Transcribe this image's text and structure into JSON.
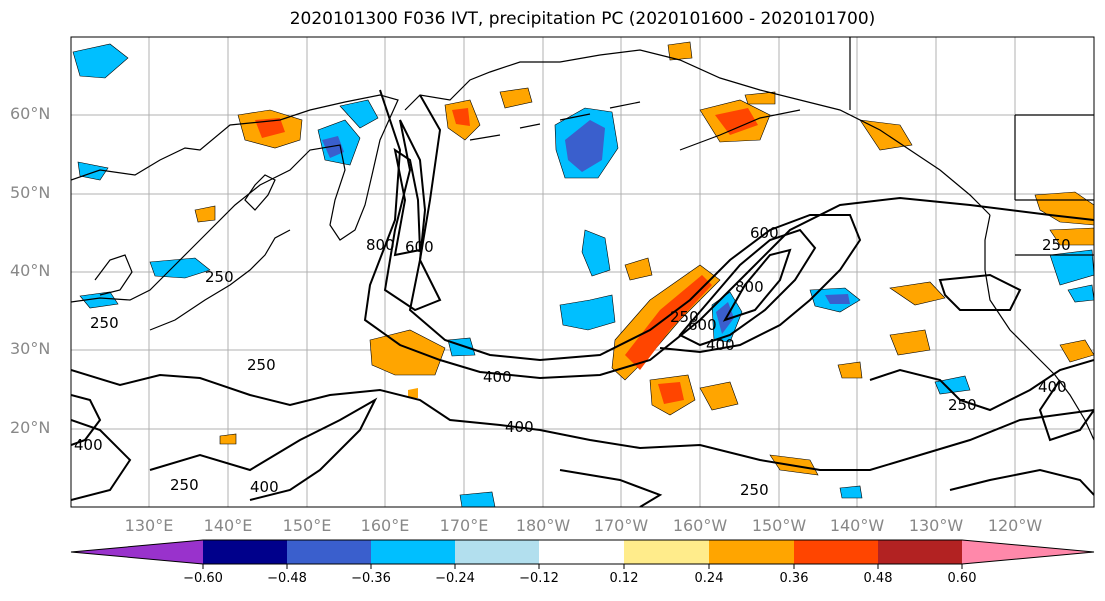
{
  "title": "2020101300 F036 IVT, precipitation PC (2020101600 - 2020101700)",
  "lat_labels": [
    "60°N",
    "50°N",
    "40°N",
    "30°N",
    "20°N"
  ],
  "lon_labels": [
    "130°E",
    "140°E",
    "150°E",
    "160°E",
    "170°E",
    "180°W",
    "170°W",
    "160°W",
    "150°W",
    "140°W",
    "130°W",
    "120°W"
  ],
  "contour_labels": [
    "250",
    "250",
    "250",
    "250",
    "250",
    "250",
    "400",
    "400",
    "400",
    "400",
    "400",
    "400",
    "600",
    "600",
    "800",
    "600",
    "800",
    "250",
    "250"
  ],
  "colorbar": {
    "colors": [
      "#9932cc",
      "#00008b",
      "#3a5fcd",
      "#00bfff",
      "#b2dfee",
      "#ffffff",
      "#ffec8b",
      "#ffa500",
      "#ff4500",
      "#b22222",
      "#ff88aa"
    ],
    "ticks": [
      "−0.60",
      "−0.48",
      "−0.36",
      "−0.24",
      "−0.12",
      "0.12",
      "0.24",
      "0.36",
      "0.48",
      "0.60"
    ]
  },
  "map": {
    "lat_range": [
      10,
      70
    ],
    "lon_range_deg_east": [
      120,
      250
    ],
    "gridlines": true
  }
}
